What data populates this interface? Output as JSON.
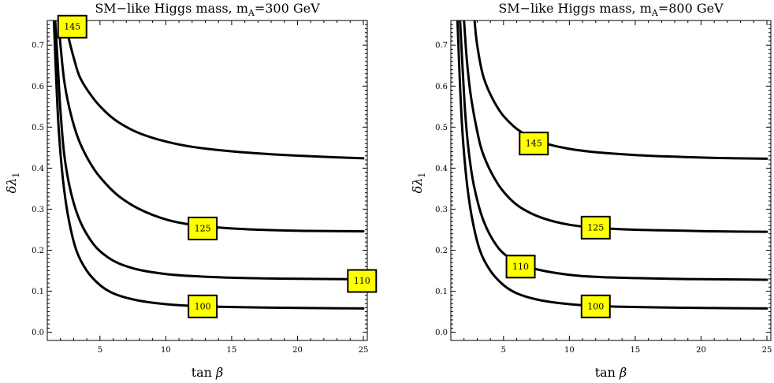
{
  "chart_data": [
    {
      "type": "line",
      "title": "SM−like Higgs mass, m",
      "title_sub": "A",
      "title_suffix": "=300 GeV",
      "xlabel": "tan",
      "xlabel_symbol": "β",
      "ylabel": "δλ",
      "ylabel_sub": "1",
      "xlim": [
        1,
        25.3
      ],
      "ylim": [
        -0.02,
        0.76
      ],
      "xticks": [
        5,
        10,
        15,
        20,
        25
      ],
      "yticks": [
        0.0,
        0.1,
        0.2,
        0.3,
        0.4,
        0.5,
        0.6,
        0.7
      ],
      "grid": false,
      "series": [
        {
          "name": "145",
          "label": "145",
          "label_at": [
            2.9,
            0.745
          ],
          "points": [
            [
              2.3,
              0.76
            ],
            [
              2.6,
              0.72
            ],
            [
              3.0,
              0.67
            ],
            [
              3.5,
              0.62
            ],
            [
              4.5,
              0.57
            ],
            [
              5.5,
              0.535
            ],
            [
              6.5,
              0.51
            ],
            [
              8.0,
              0.485
            ],
            [
              10.0,
              0.465
            ],
            [
              12.0,
              0.452
            ],
            [
              15.0,
              0.441
            ],
            [
              18.0,
              0.434
            ],
            [
              21.0,
              0.429
            ],
            [
              25.0,
              0.424
            ]
          ]
        },
        {
          "name": "125",
          "label": "125",
          "label_at": [
            12.8,
            0.253
          ],
          "points": [
            [
              1.85,
              0.76
            ],
            [
              2.0,
              0.7
            ],
            [
              2.3,
              0.61
            ],
            [
              2.8,
              0.53
            ],
            [
              3.5,
              0.46
            ],
            [
              4.5,
              0.4
            ],
            [
              5.5,
              0.36
            ],
            [
              6.5,
              0.33
            ],
            [
              8.0,
              0.3
            ],
            [
              10.0,
              0.275
            ],
            [
              12.0,
              0.262
            ],
            [
              15.0,
              0.253
            ],
            [
              18.0,
              0.249
            ],
            [
              21.0,
              0.247
            ],
            [
              25.0,
              0.246
            ]
          ]
        },
        {
          "name": "110",
          "label": "110",
          "label_at": [
            24.9,
            0.125
          ],
          "points": [
            [
              1.6,
              0.76
            ],
            [
              1.8,
              0.65
            ],
            [
              2.0,
              0.54
            ],
            [
              2.3,
              0.43
            ],
            [
              2.8,
              0.34
            ],
            [
              3.5,
              0.27
            ],
            [
              4.5,
              0.215
            ],
            [
              5.5,
              0.185
            ],
            [
              6.5,
              0.167
            ],
            [
              8.0,
              0.152
            ],
            [
              10.0,
              0.142
            ],
            [
              12.0,
              0.137
            ],
            [
              15.0,
              0.133
            ],
            [
              18.0,
              0.131
            ],
            [
              21.0,
              0.13
            ],
            [
              25.0,
              0.129
            ]
          ]
        },
        {
          "name": "100",
          "label": "100",
          "label_at": [
            12.8,
            0.063
          ],
          "points": [
            [
              1.5,
              0.76
            ],
            [
              1.7,
              0.6
            ],
            [
              1.9,
              0.48
            ],
            [
              2.2,
              0.37
            ],
            [
              2.6,
              0.28
            ],
            [
              3.2,
              0.2
            ],
            [
              4.0,
              0.15
            ],
            [
              5.0,
              0.115
            ],
            [
              6.0,
              0.095
            ],
            [
              7.5,
              0.08
            ],
            [
              9.0,
              0.072
            ],
            [
              11.0,
              0.066
            ],
            [
              14.0,
              0.062
            ],
            [
              18.0,
              0.06
            ],
            [
              21.0,
              0.059
            ],
            [
              25.0,
              0.058
            ]
          ]
        }
      ]
    },
    {
      "type": "line",
      "title": "SM−like Higgs mass, m",
      "title_sub": "A",
      "title_suffix": "=800 GeV",
      "xlabel": "tan",
      "xlabel_symbol": "β",
      "ylabel": "δλ",
      "ylabel_sub": "1",
      "xlim": [
        1,
        25.3
      ],
      "ylim": [
        -0.02,
        0.76
      ],
      "xticks": [
        5,
        10,
        15,
        20,
        25
      ],
      "yticks": [
        0.0,
        0.1,
        0.2,
        0.3,
        0.4,
        0.5,
        0.6,
        0.7
      ],
      "grid": false,
      "series": [
        {
          "name": "145",
          "label": "145",
          "label_at": [
            7.3,
            0.46
          ],
          "points": [
            [
              2.8,
              0.76
            ],
            [
              3.0,
              0.7
            ],
            [
              3.5,
              0.62
            ],
            [
              4.5,
              0.55
            ],
            [
              5.5,
              0.51
            ],
            [
              6.5,
              0.485
            ],
            [
              8.0,
              0.462
            ],
            [
              10.0,
              0.447
            ],
            [
              12.0,
              0.439
            ],
            [
              15.0,
              0.432
            ],
            [
              18.0,
              0.428
            ],
            [
              21.0,
              0.425
            ],
            [
              25.0,
              0.423
            ]
          ]
        },
        {
          "name": "125",
          "label": "125",
          "label_at": [
            12.0,
            0.255
          ],
          "points": [
            [
              2.0,
              0.76
            ],
            [
              2.2,
              0.67
            ],
            [
              2.5,
              0.58
            ],
            [
              3.0,
              0.49
            ],
            [
              3.5,
              0.43
            ],
            [
              4.5,
              0.365
            ],
            [
              5.5,
              0.325
            ],
            [
              6.5,
              0.3
            ],
            [
              8.0,
              0.278
            ],
            [
              10.0,
              0.262
            ],
            [
              12.0,
              0.255
            ],
            [
              15.0,
              0.25
            ],
            [
              18.0,
              0.248
            ],
            [
              21.0,
              0.246
            ],
            [
              25.0,
              0.245
            ]
          ]
        },
        {
          "name": "110",
          "label": "110",
          "label_at": [
            6.3,
            0.16
          ],
          "points": [
            [
              1.7,
              0.76
            ],
            [
              1.9,
              0.64
            ],
            [
              2.1,
              0.53
            ],
            [
              2.4,
              0.43
            ],
            [
              2.8,
              0.35
            ],
            [
              3.5,
              0.27
            ],
            [
              4.5,
              0.21
            ],
            [
              5.5,
              0.18
            ],
            [
              6.5,
              0.163
            ],
            [
              8.0,
              0.15
            ],
            [
              10.0,
              0.14
            ],
            [
              12.0,
              0.135
            ],
            [
              15.0,
              0.132
            ],
            [
              18.0,
              0.13
            ],
            [
              21.0,
              0.129
            ],
            [
              25.0,
              0.128
            ]
          ]
        },
        {
          "name": "100",
          "label": "100",
          "label_at": [
            12.0,
            0.063
          ],
          "points": [
            [
              1.5,
              0.76
            ],
            [
              1.7,
              0.6
            ],
            [
              1.9,
              0.48
            ],
            [
              2.2,
              0.37
            ],
            [
              2.6,
              0.28
            ],
            [
              3.2,
              0.2
            ],
            [
              4.0,
              0.15
            ],
            [
              5.0,
              0.115
            ],
            [
              6.0,
              0.095
            ],
            [
              7.5,
              0.08
            ],
            [
              9.0,
              0.072
            ],
            [
              11.0,
              0.066
            ],
            [
              14.0,
              0.062
            ],
            [
              18.0,
              0.06
            ],
            [
              21.0,
              0.059
            ],
            [
              25.0,
              0.058
            ]
          ]
        }
      ]
    }
  ]
}
